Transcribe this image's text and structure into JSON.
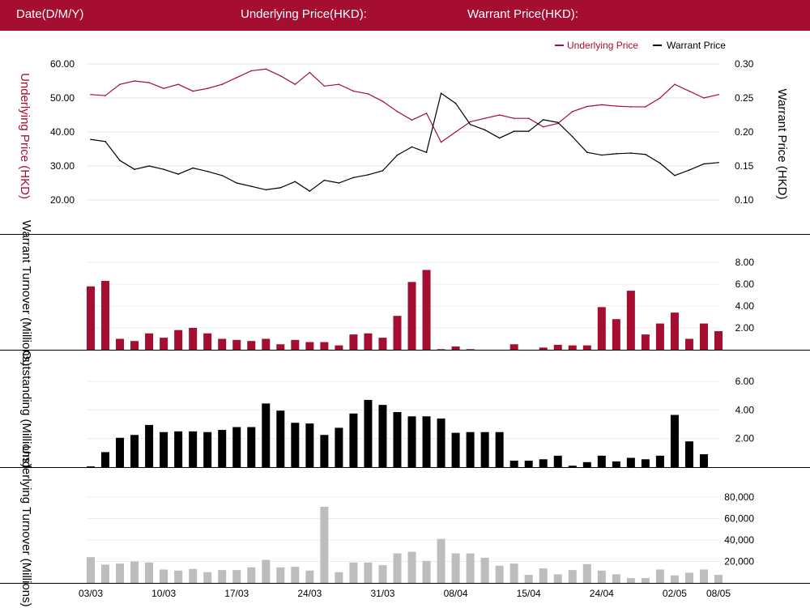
{
  "header": {
    "date_label": "Date(D/M/Y)",
    "underlying_label": "Underlying Price(HKD):",
    "warrant_label": "Warrant Price(HKD):"
  },
  "colors": {
    "brand": "#a50e31",
    "black": "#000000",
    "grey": "#bdbdbd"
  },
  "chart_data": [
    {
      "type": "line",
      "legend": [
        "Underlying Price",
        "Warrant Price"
      ],
      "legend_position": "top-right",
      "ylabel_left": "Underlying Price (HKD)",
      "ylabel_right": "Warrant  Price (HKD)",
      "ylim_left": [
        20,
        60
      ],
      "ylim_right": [
        0.1,
        0.3
      ],
      "yticks_left": [
        "60.00",
        "50.00",
        "40.00",
        "30.00",
        "20.00"
      ],
      "yticks_right": [
        "0.30",
        "0.25",
        "0.20",
        "0.15",
        "0.10"
      ],
      "series": [
        {
          "name": "Underlying Price",
          "axis": "left",
          "values": [
            51.0,
            50.7,
            54.0,
            55.0,
            54.5,
            52.8,
            54.0,
            52.0,
            52.8,
            54.0,
            56.0,
            58.0,
            58.5,
            56.5,
            54.0,
            57.5,
            53.5,
            54.0,
            52.0,
            51.2,
            49.0,
            46.0,
            43.5,
            45.5,
            37.0,
            40.0,
            43.0,
            44.0,
            45.0,
            44.0,
            44.0,
            41.5,
            42.5,
            46.0,
            47.5,
            48.0,
            47.6,
            47.4,
            47.4,
            50.0,
            54.0,
            52.0,
            50.0,
            51.0
          ]
        },
        {
          "name": "Warrant Price",
          "axis": "right",
          "values": [
            0.189,
            0.186,
            0.158,
            0.145,
            0.15,
            0.145,
            0.138,
            0.147,
            0.142,
            0.136,
            0.125,
            0.12,
            0.115,
            0.118,
            0.127,
            0.113,
            0.129,
            0.125,
            0.133,
            0.137,
            0.143,
            0.166,
            0.178,
            0.17,
            0.257,
            0.242,
            0.211,
            0.203,
            0.191,
            0.201,
            0.201,
            0.218,
            0.214,
            0.193,
            0.17,
            0.166,
            0.168,
            0.169,
            0.167,
            0.154,
            0.136,
            0.144,
            0.153,
            0.155
          ]
        }
      ]
    },
    {
      "type": "bar",
      "ylabel": "Warrant  Turnover (Millions)",
      "ylim": [
        0,
        8
      ],
      "yticks": [
        "8.00",
        "6.00",
        "4.00",
        "2.00"
      ],
      "values": [
        5.8,
        6.3,
        1.0,
        0.8,
        1.5,
        1.1,
        1.8,
        2.0,
        1.5,
        1.0,
        0.9,
        0.8,
        1.0,
        0.5,
        0.9,
        0.7,
        0.7,
        0.4,
        1.4,
        1.5,
        1.1,
        3.1,
        6.2,
        7.3,
        0.05,
        0.3,
        0.05,
        0.0,
        0.0,
        0.5,
        0.0,
        0.2,
        0.45,
        0.4,
        0.4,
        3.9,
        2.8,
        5.4,
        1.4,
        2.4,
        3.4,
        1.0,
        2.4,
        1.7
      ]
    },
    {
      "type": "bar",
      "ylabel": "Outstanding (Millions)",
      "ylim": [
        0,
        6
      ],
      "yticks": [
        "6.00",
        "4.00",
        "2.00"
      ],
      "values": [
        0.05,
        1.05,
        2.05,
        2.25,
        2.95,
        2.45,
        2.5,
        2.5,
        2.45,
        2.6,
        2.8,
        2.8,
        4.45,
        3.95,
        3.1,
        3.05,
        2.25,
        2.75,
        3.75,
        4.7,
        4.35,
        3.85,
        3.55,
        3.55,
        3.4,
        2.4,
        2.45,
        2.45,
        2.45,
        0.45,
        0.45,
        0.55,
        0.8,
        0.1,
        0.35,
        0.8,
        0.4,
        0.65,
        0.55,
        0.8,
        3.65,
        1.8,
        0.9,
        0.0
      ]
    },
    {
      "type": "bar",
      "ylabel": "Underlying Turnover (Millions)",
      "ylim": [
        0,
        80000
      ],
      "yticks": [
        "80,000",
        "60,000",
        "40,000",
        "20,000"
      ],
      "values": [
        24000,
        17000,
        18000,
        20000,
        19000,
        12500,
        11500,
        13000,
        10000,
        12000,
        12000,
        14500,
        21500,
        14500,
        15000,
        11500,
        71000,
        10000,
        19000,
        19000,
        16500,
        27500,
        29000,
        20500,
        41000,
        27500,
        27500,
        23500,
        16000,
        18000,
        7500,
        13500,
        8000,
        12000,
        17500,
        11500,
        8000,
        4500,
        4500,
        12500,
        7000,
        9500,
        12500,
        7500
      ]
    }
  ],
  "x_ticks": [
    "03/03",
    "10/03",
    "17/03",
    "24/03",
    "31/03",
    "08/04",
    "15/04",
    "24/04",
    "02/05",
    "08/05"
  ]
}
